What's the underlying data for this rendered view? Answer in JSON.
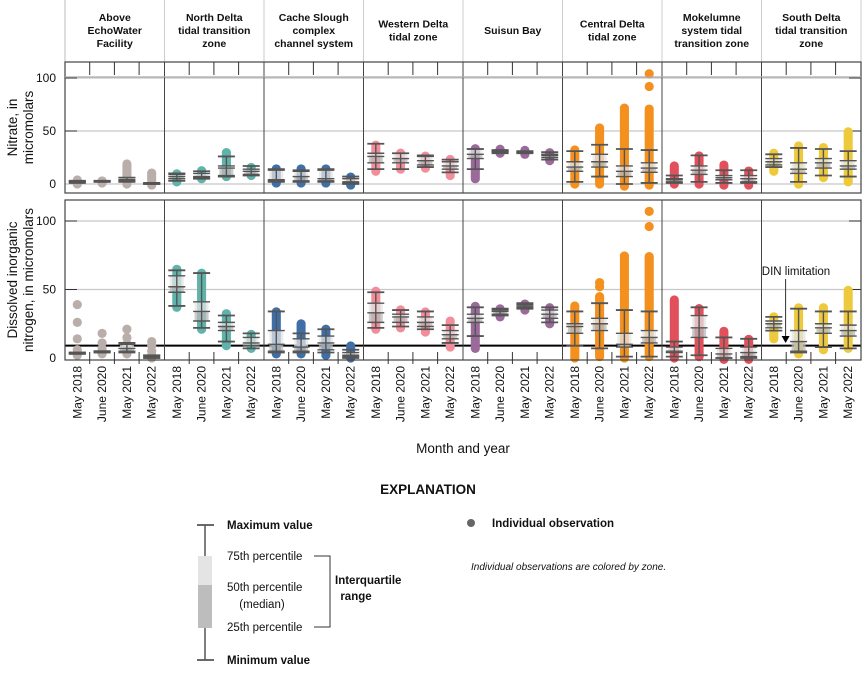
{
  "chart_data": {
    "type": "box",
    "categories": [
      "May 2018",
      "June 2020",
      "May 2021",
      "May 2022"
    ],
    "xlabel": "Month and year",
    "zones": [
      {
        "label": [
          "Above",
          "EchoWater",
          "Facility"
        ],
        "color": "#b9aeaa"
      },
      {
        "label": [
          "North Delta",
          "tidal transition",
          "zone"
        ],
        "color": "#5fb3aa"
      },
      {
        "label": [
          "Cache Slough",
          "complex",
          "channel system"
        ],
        "color": "#3f6fa6"
      },
      {
        "label": [
          "Western Delta",
          "tidal zone"
        ],
        "color": "#f28d99"
      },
      {
        "label": [
          "Suisun Bay"
        ],
        "color": "#9b6a9b"
      },
      {
        "label": [
          "Central Delta",
          "tidal zone"
        ],
        "color": "#f4901e"
      },
      {
        "label": [
          "Mokelumne",
          "system tidal",
          "transition zone"
        ],
        "color": "#e0515b"
      },
      {
        "label": [
          "South Delta",
          "tidal transition",
          "zone"
        ],
        "color": "#eec93c"
      }
    ],
    "panels": [
      {
        "ylabel": [
          "Nitrate, in",
          "micromolars"
        ],
        "yticks": [
          "0",
          "50",
          "100"
        ],
        "ylim": [
          -8,
          110
        ],
        "grid": true,
        "boxes": [
          [
            {
              "s": [
                1,
                2,
                2,
                3,
                3
              ],
              "obs": [
                0,
                4
              ]
            },
            {
              "s": [
                2,
                2,
                3,
                3,
                3
              ],
              "obs": [
                1,
                4
              ]
            },
            {
              "s": [
                2,
                3,
                4,
                6,
                6
              ],
              "obs": [
                0,
                19
              ]
            },
            {
              "s": [
                0,
                0,
                0,
                1,
                1
              ],
              "obs": [
                -1,
                12
              ]
            }
          ],
          [
            {
              "s": [
                3,
                5,
                7,
                9,
                10
              ],
              "obs": [
                2,
                11
              ]
            },
            {
              "s": [
                5,
                6,
                7,
                10,
                12
              ],
              "obs": [
                5,
                13
              ]
            },
            {
              "s": [
                7,
                8,
                15,
                17,
                26
              ],
              "obs": [
                7,
                31
              ]
            },
            {
              "s": [
                8,
                9,
                12,
                14,
                17
              ],
              "obs": [
                8,
                17
              ]
            }
          ],
          [
            {
              "s": [
                2,
                3,
                4,
                13,
                14
              ],
              "obs": [
                1,
                15
              ]
            },
            {
              "s": [
                2,
                3,
                7,
                12,
                13
              ],
              "obs": [
                1,
                15
              ]
            },
            {
              "s": [
                2,
                3,
                5,
                13,
                14
              ],
              "obs": [
                1,
                15
              ]
            },
            {
              "s": [
                0,
                1,
                2,
                5,
                7
              ],
              "obs": [
                -1,
                8
              ]
            }
          ],
          [
            {
              "s": [
                14,
                20,
                26,
                29,
                38
              ],
              "obs": [
                12,
                38
              ]
            },
            {
              "s": [
                14,
                20,
                24,
                29,
                29
              ],
              "obs": [
                14,
                30
              ]
            },
            {
              "s": [
                16,
                18,
                22,
                26,
                27
              ],
              "obs": [
                15,
                28
              ]
            },
            {
              "s": [
                11,
                14,
                17,
                21,
                23
              ],
              "obs": [
                8,
                24
              ]
            }
          ],
          [
            {
              "s": [
                14,
                24,
                28,
                33,
                33
              ],
              "obs": [
                5,
                35
              ]
            },
            {
              "s": [
                29,
                30,
                31,
                31,
                32
              ],
              "obs": [
                29,
                33
              ]
            },
            {
              "s": [
                29,
                30,
                30,
                30,
                31
              ],
              "obs": [
                28,
                32
              ]
            },
            {
              "s": [
                23,
                25,
                27,
                28,
                30
              ],
              "obs": [
                22,
                31
              ]
            }
          ],
          [
            {
              "s": [
                2,
                12,
                16,
                21,
                31
              ],
              "obs": [
                0,
                33
              ]
            },
            {
              "s": [
                7,
                16,
                21,
                28,
                37
              ],
              "obs": [
                0,
                54
              ]
            },
            {
              "s": [
                0,
                7,
                12,
                17,
                33
              ],
              "obs": [
                -2,
                72
              ]
            },
            {
              "s": [
                1,
                11,
                15,
                20,
                32
              ],
              "obs": [
                -1,
                72
              ],
              "extra": [
                92,
                104
              ]
            }
          ],
          [
            {
              "s": [
                1,
                2,
                4,
                5,
                8
              ],
              "obs": [
                0,
                18
              ]
            },
            {
              "s": [
                2,
                9,
                13,
                17,
                27
              ],
              "obs": [
                0,
                27
              ]
            },
            {
              "s": [
                1,
                4,
                6,
                8,
                13
              ],
              "obs": [
                -1,
                18
              ]
            },
            {
              "s": [
                1,
                2,
                5,
                8,
                13
              ],
              "obs": [
                -1,
                14
              ]
            }
          ],
          [
            {
              "s": [
                16,
                18,
                21,
                24,
                28
              ],
              "obs": [
                12,
                30
              ]
            },
            {
              "s": [
                2,
                10,
                14,
                20,
                34
              ],
              "obs": [
                0,
                37
              ]
            },
            {
              "s": [
                8,
                15,
                20,
                24,
                33
              ],
              "obs": [
                6,
                36
              ]
            },
            {
              "s": [
                7,
                14,
                17,
                22,
                31
              ],
              "obs": [
                2,
                50
              ]
            }
          ]
        ]
      },
      {
        "ylabel": [
          "Dissolved inorganic",
          "nitrogen, in micromolars"
        ],
        "yticks": [
          "0",
          "50",
          "100"
        ],
        "ylim": [
          -2,
          115
        ],
        "grid": true,
        "reference_line": {
          "label": "DIN limitation",
          "value": 9
        },
        "boxes": [
          [
            {
              "s": [
                3,
                3,
                4,
                4,
                4
              ],
              "points": [
                2,
                4,
                6,
                14,
                26,
                39
              ]
            },
            {
              "s": [
                4,
                4,
                5,
                5,
                5
              ],
              "points": [
                3,
                5,
                7,
                11,
                18
              ]
            },
            {
              "s": [
                4,
                5,
                7,
                10,
                11
              ],
              "obs": [
                3,
                11
              ],
              "extra": [
                15,
                21
              ]
            },
            {
              "s": [
                0,
                0,
                1,
                2,
                2
              ],
              "points": [
                0,
                2,
                5,
                9,
                12
              ]
            }
          ],
          [
            {
              "s": [
                38,
                48,
                52,
                60,
                64
              ],
              "obs": [
                37,
                65
              ]
            },
            {
              "s": [
                22,
                27,
                34,
                41,
                62
              ],
              "obs": [
                21,
                62
              ]
            },
            {
              "s": [
                12,
                20,
                23,
                26,
                31
              ],
              "obs": [
                9,
                33
              ]
            },
            {
              "s": [
                7,
                9,
                11,
                15,
                18
              ],
              "obs": [
                7,
                18
              ]
            }
          ],
          [
            {
              "s": [
                4,
                5,
                10,
                20,
                34
              ],
              "obs": [
                3,
                34
              ]
            },
            {
              "s": [
                4,
                5,
                8,
                14,
                18
              ],
              "obs": [
                3,
                26
              ]
            },
            {
              "s": [
                4,
                6,
                11,
                16,
                21
              ],
              "obs": [
                2,
                22
              ]
            },
            {
              "s": [
                0,
                1,
                2,
                4,
                6
              ],
              "obs": [
                0,
                10
              ]
            }
          ],
          [
            {
              "s": [
                22,
                26,
                33,
                40,
                48
              ],
              "obs": [
                21,
                49
              ]
            },
            {
              "s": [
                23,
                26,
                30,
                32,
                35
              ],
              "obs": [
                22,
                36
              ]
            },
            {
              "s": [
                21,
                23,
                26,
                30,
                34
              ],
              "obs": [
                19,
                35
              ]
            },
            {
              "s": [
                11,
                14,
                17,
                20,
                24
              ],
              "obs": [
                8,
                28
              ]
            }
          ],
          [
            {
              "s": [
                16,
                26,
                29,
                32,
                37
              ],
              "obs": [
                7,
                39
              ]
            },
            {
              "s": [
                31,
                32,
                34,
                35,
                36
              ],
              "obs": [
                30,
                37
              ]
            },
            {
              "s": [
                36,
                37,
                38,
                39,
                40
              ],
              "obs": [
                35,
                40
              ]
            },
            {
              "s": [
                26,
                29,
                32,
                35,
                37
              ],
              "obs": [
                25,
                38
              ]
            }
          ],
          [
            {
              "s": [
                9,
                18,
                23,
                25,
                34
              ],
              "obs": [
                0,
                38
              ]
            },
            {
              "s": [
                7,
                20,
                25,
                29,
                40
              ],
              "obs": [
                1,
                46
              ],
              "extra": [
                52,
                55
              ]
            },
            {
              "s": [
                1,
                8,
                10,
                18,
                35
              ],
              "obs": [
                0,
                75
              ]
            },
            {
              "s": [
                1,
                11,
                15,
                20,
                34
              ],
              "obs": [
                1,
                75
              ],
              "extra": [
                96,
                107
              ]
            }
          ],
          [
            {
              "s": [
                1,
                4,
                5,
                8,
                12
              ],
              "obs": [
                0,
                43
              ]
            },
            {
              "s": [
                2,
                15,
                22,
                31,
                37
              ],
              "obs": [
                1,
                37
              ]
            },
            {
              "s": [
                0,
                0,
                3,
                7,
                15
              ],
              "obs": [
                -1,
                20
              ]
            },
            {
              "s": [
                0,
                1,
                4,
                8,
                14
              ],
              "obs": [
                -1,
                14
              ]
            }
          ],
          [
            {
              "s": [
                20,
                22,
                25,
                27,
                30
              ],
              "obs": [
                14,
                31
              ]
            },
            {
              "s": [
                4,
                5,
                12,
                20,
                36
              ],
              "obs": [
                3,
                37
              ]
            },
            {
              "s": [
                8,
                18,
                22,
                25,
                34
              ],
              "obs": [
                6,
                37
              ]
            },
            {
              "s": [
                7,
                16,
                20,
                24,
                34
              ],
              "obs": [
                7,
                50
              ]
            }
          ]
        ]
      }
    ]
  },
  "legend": {
    "title": "EXPLANATION",
    "max": "Maximum value",
    "p75": "75th percentile",
    "p50": "50th percentile",
    "median": "(median)",
    "p25": "25th percentile",
    "min": "Minimum value",
    "iqr": [
      "Interquartile",
      "range"
    ],
    "observation": "Individual observation",
    "note": "Individual observations are colored by zone.",
    "observation_color": "#666666"
  }
}
